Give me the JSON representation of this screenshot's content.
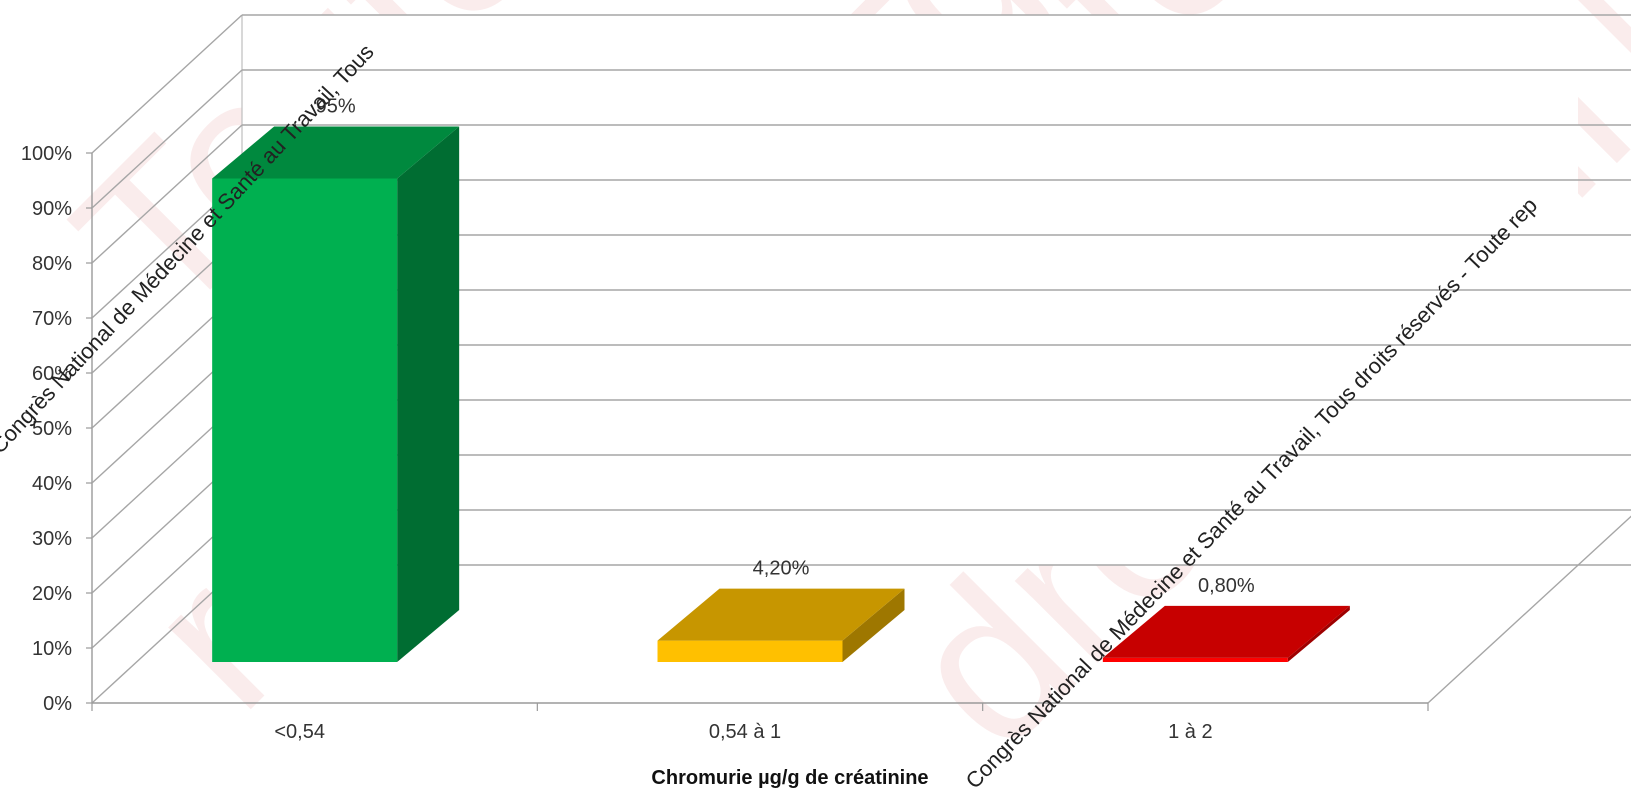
{
  "chart_data": {
    "type": "bar",
    "style": "3d",
    "categories": [
      "<0,54",
      "0,54 à 1",
      "1 à 2"
    ],
    "values": [
      95,
      4.2,
      0.8
    ],
    "value_labels": [
      "95%",
      "4,20%",
      "0,80%"
    ],
    "colors": [
      "#00b050",
      "#ffc000",
      "#ff0000"
    ],
    "xlabel": "Chromurie µg/g de créatinine",
    "ylabel": "",
    "ylim": [
      0,
      100
    ],
    "yticks": [
      "0%",
      "10%",
      "20%",
      "30%",
      "40%",
      "50%",
      "60%",
      "70%",
      "80%",
      "90%",
      "100%"
    ],
    "grid": true
  },
  "watermark": {
    "overlay_lines": [
      "Congrès National de Médecine et Santé au Travail, Tous",
      "Congrès National de Médecine et Santé au Travail, Tous droits réservés - Toute rep"
    ],
    "background_phrases": [
      "Toute",
      "© Congrès",
      "Santé au",
      "Travail",
      "de M",
      "réservés -",
      "droits"
    ]
  }
}
